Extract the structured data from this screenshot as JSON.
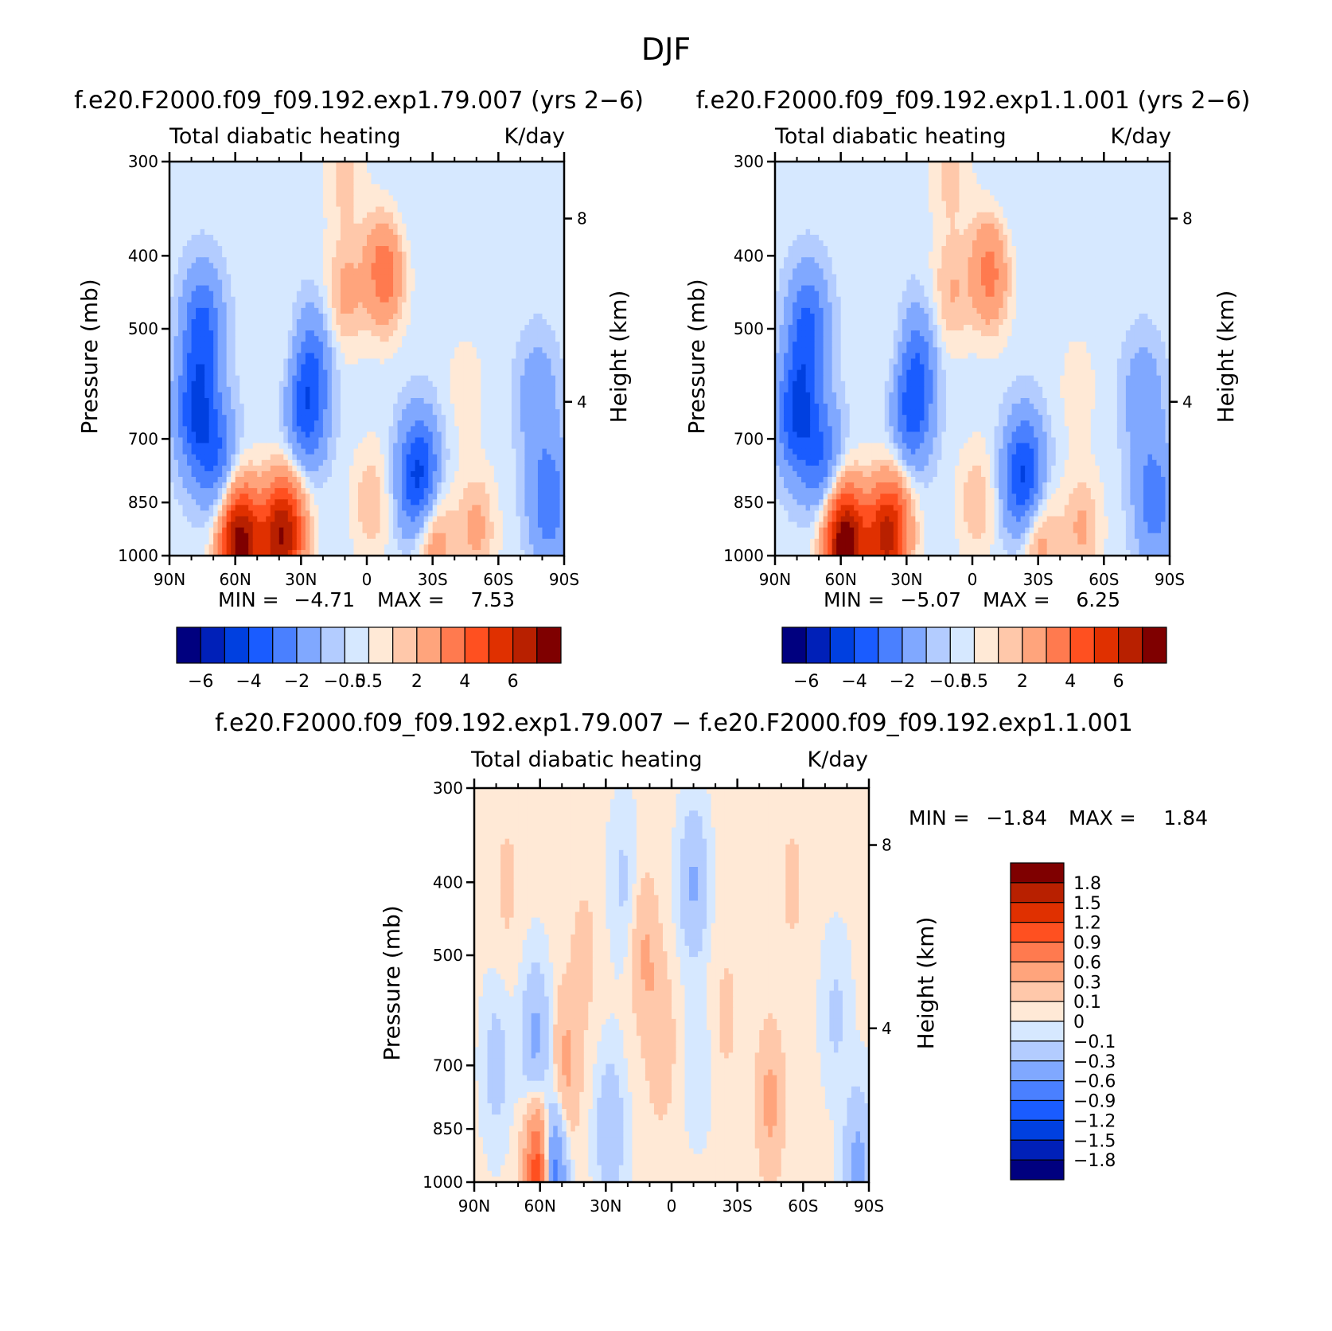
{
  "figure_title": "DJF",
  "colors": {
    "abs_scale": [
      "#00007f",
      "#0020b8",
      "#0040e0",
      "#1a5cff",
      "#4a80ff",
      "#80a8ff",
      "#b3ccff",
      "#d6e8ff",
      "#ffe9d6",
      "#ffc8aa",
      "#ffa47c",
      "#ff7a4f",
      "#ff5020",
      "#e03000",
      "#b82000",
      "#7f0000"
    ],
    "diff_scale": [
      "#00007f",
      "#0020b8",
      "#0040e0",
      "#1a5cff",
      "#4a80ff",
      "#80a8ff",
      "#b3ccff",
      "#d6e8ff",
      "#ffe9d6",
      "#ffc8aa",
      "#ffa47c",
      "#ff7a4f",
      "#ff5020",
      "#e03000",
      "#b82000",
      "#7f0000"
    ]
  },
  "chart_data": [
    {
      "id": "panel-left",
      "type": "heatmap",
      "title": "f.e20.F2000.f09_f09.192.exp1.79.007 (yrs 2−6)",
      "subtitle_left": "Total diabatic heating",
      "subtitle_right": "K/day",
      "xlabel": "",
      "ylabel": "Pressure (mb)",
      "y2label": "Height (km)",
      "x_ticks": [
        "90N",
        "60N",
        "30N",
        "0",
        "30S",
        "60S",
        "90S"
      ],
      "x_values": [
        90,
        60,
        30,
        0,
        -30,
        -60,
        -90
      ],
      "y_ticks": [
        "300",
        "400",
        "500",
        "700",
        "850",
        "1000"
      ],
      "y_values": [
        300,
        400,
        500,
        700,
        850,
        1000
      ],
      "y2_ticks": [
        "8",
        "4"
      ],
      "y2_values_mb": [
        357,
        625
      ],
      "min_label": "MIN =",
      "min_value": "−4.71",
      "max_label": "MAX =",
      "max_value": "7.53",
      "colorbar_orientation": "horizontal",
      "colorbar_labels": [
        "−6",
        "−4",
        "−2",
        "−0.5",
        "0.5",
        "2",
        "4",
        "6"
      ],
      "features": [
        {
          "lat": 78,
          "p": 650,
          "v": -3.5
        },
        {
          "lat": 75,
          "p": 500,
          "v": -3
        },
        {
          "lat": 68,
          "p": 750,
          "v": -2.5
        },
        {
          "lat": 60,
          "p": 960,
          "v": 4.5
        },
        {
          "lat": 55,
          "p": 960,
          "v": 3
        },
        {
          "lat": 40,
          "p": 960,
          "v": 4.5
        },
        {
          "lat": 35,
          "p": 900,
          "v": 2.5
        },
        {
          "lat": 28,
          "p": 650,
          "v": -3
        },
        {
          "lat": 25,
          "p": 550,
          "v": -2
        },
        {
          "lat": 35,
          "p": 550,
          "v": 0.6
        },
        {
          "lat": 10,
          "p": 450,
          "v": 1.5
        },
        {
          "lat": -8,
          "p": 420,
          "v": 3
        },
        {
          "lat": -2,
          "p": 850,
          "v": 1.2
        },
        {
          "lat": -22,
          "p": 800,
          "v": -2
        },
        {
          "lat": -25,
          "p": 780,
          "v": -2.5
        },
        {
          "lat": -45,
          "p": 600,
          "v": 0.6
        },
        {
          "lat": -30,
          "p": 950,
          "v": 2.2
        },
        {
          "lat": -50,
          "p": 920,
          "v": 1.5
        },
        {
          "lat": -78,
          "p": 620,
          "v": -1.5
        },
        {
          "lat": -83,
          "p": 850,
          "v": -2.5
        },
        {
          "lat": 10,
          "p": 310,
          "v": 1
        },
        {
          "lat": -15,
          "p": 350,
          "v": -0.3
        }
      ]
    },
    {
      "id": "panel-right",
      "type": "heatmap",
      "title": "f.e20.F2000.f09_f09.192.exp1.1.001 (yrs 2−6)",
      "subtitle_left": "Total diabatic heating",
      "subtitle_right": "K/day",
      "xlabel": "",
      "ylabel": "Pressure (mb)",
      "y2label": "Height (km)",
      "x_ticks": [
        "90N",
        "60N",
        "30N",
        "0",
        "30S",
        "60S",
        "90S"
      ],
      "x_values": [
        90,
        60,
        30,
        0,
        -30,
        -60,
        -90
      ],
      "y_ticks": [
        "300",
        "400",
        "500",
        "700",
        "850",
        "1000"
      ],
      "y_values": [
        300,
        400,
        500,
        700,
        850,
        1000
      ],
      "y2_ticks": [
        "8",
        "4"
      ],
      "y2_values_mb": [
        357,
        625
      ],
      "min_label": "MIN =",
      "min_value": "−5.07",
      "max_label": "MAX =",
      "max_value": "6.25",
      "colorbar_orientation": "horizontal",
      "colorbar_labels": [
        "−6",
        "−4",
        "−2",
        "−0.5",
        "0.5",
        "2",
        "4",
        "6"
      ],
      "features": [
        {
          "lat": 80,
          "p": 650,
          "v": -3.8
        },
        {
          "lat": 75,
          "p": 500,
          "v": -3
        },
        {
          "lat": 68,
          "p": 750,
          "v": -2.5
        },
        {
          "lat": 60,
          "p": 960,
          "v": 4.8
        },
        {
          "lat": 55,
          "p": 960,
          "v": 3
        },
        {
          "lat": 40,
          "p": 960,
          "v": 4
        },
        {
          "lat": 35,
          "p": 900,
          "v": 2.3
        },
        {
          "lat": 28,
          "p": 650,
          "v": -2.8
        },
        {
          "lat": 25,
          "p": 550,
          "v": -2
        },
        {
          "lat": 35,
          "p": 550,
          "v": 0.6
        },
        {
          "lat": 10,
          "p": 450,
          "v": 1.3
        },
        {
          "lat": -8,
          "p": 420,
          "v": 2.7
        },
        {
          "lat": -2,
          "p": 850,
          "v": 1.2
        },
        {
          "lat": -22,
          "p": 800,
          "v": -2
        },
        {
          "lat": -25,
          "p": 780,
          "v": -2.3
        },
        {
          "lat": -48,
          "p": 600,
          "v": 0.6
        },
        {
          "lat": -30,
          "p": 950,
          "v": 2
        },
        {
          "lat": -50,
          "p": 920,
          "v": 1.4
        },
        {
          "lat": -78,
          "p": 620,
          "v": -1.5
        },
        {
          "lat": -83,
          "p": 850,
          "v": -2.3
        },
        {
          "lat": 10,
          "p": 310,
          "v": 1
        },
        {
          "lat": -15,
          "p": 350,
          "v": -0.3
        }
      ]
    },
    {
      "id": "panel-diff",
      "type": "heatmap",
      "title": "f.e20.F2000.f09_f09.192.exp1.79.007 − f.e20.F2000.f09_f09.192.exp1.1.001",
      "subtitle_left": "Total diabatic heating",
      "subtitle_right": "K/day",
      "xlabel": "",
      "ylabel": "Pressure (mb)",
      "y2label": "Height (km)",
      "x_ticks": [
        "90N",
        "60N",
        "30N",
        "0",
        "30S",
        "60S",
        "90S"
      ],
      "x_values": [
        90,
        60,
        30,
        0,
        -30,
        -60,
        -90
      ],
      "y_ticks": [
        "300",
        "400",
        "500",
        "700",
        "850",
        "1000"
      ],
      "y_values": [
        300,
        400,
        500,
        700,
        850,
        1000
      ],
      "y2_ticks": [
        "8",
        "4"
      ],
      "y2_values_mb": [
        357,
        625
      ],
      "min_label": "MIN =",
      "min_value": "−1.84",
      "max_label": "MAX =",
      "max_value": "1.84",
      "colorbar_orientation": "vertical",
      "colorbar_labels": [
        "1.8",
        "1.5",
        "1.2",
        "0.9",
        "0.6",
        "0.3",
        "0.1",
        "0",
        "−0.1",
        "−0.3",
        "−0.6",
        "−0.9",
        "−1.2",
        "−1.5",
        "−1.8"
      ],
      "features": [
        {
          "lat": 75,
          "p": 400,
          "v": 0.12
        },
        {
          "lat": 80,
          "p": 700,
          "v": -0.2
        },
        {
          "lat": 62,
          "p": 650,
          "v": -0.4
        },
        {
          "lat": 48,
          "p": 700,
          "v": 0.35
        },
        {
          "lat": 40,
          "p": 500,
          "v": 0.15
        },
        {
          "lat": 22,
          "p": 400,
          "v": -0.15
        },
        {
          "lat": 12,
          "p": 500,
          "v": 0.3
        },
        {
          "lat": 5,
          "p": 650,
          "v": 0.25
        },
        {
          "lat": -10,
          "p": 400,
          "v": -0.35
        },
        {
          "lat": -12,
          "p": 700,
          "v": -0.1
        },
        {
          "lat": -25,
          "p": 600,
          "v": 0.12
        },
        {
          "lat": -45,
          "p": 780,
          "v": 0.35
        },
        {
          "lat": -55,
          "p": 400,
          "v": 0.12
        },
        {
          "lat": -75,
          "p": 600,
          "v": -0.15
        },
        {
          "lat": 60,
          "p": 990,
          "v": 1.5
        },
        {
          "lat": 55,
          "p": 990,
          "v": -1.2
        },
        {
          "lat": -85,
          "p": 950,
          "v": -0.4
        },
        {
          "lat": 28,
          "p": 860,
          "v": -0.3
        }
      ]
    }
  ]
}
